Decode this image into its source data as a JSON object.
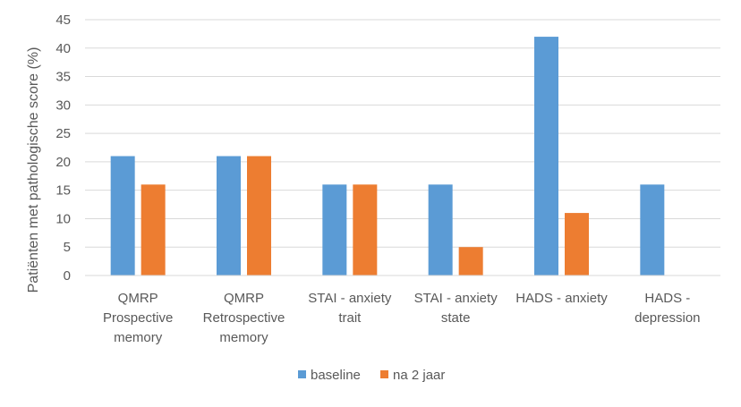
{
  "chart_data": {
    "type": "bar",
    "title": "",
    "xlabel": "",
    "ylabel": "Patiënten met pathologische score (%)",
    "ylim": [
      0,
      45
    ],
    "yticks": [
      0,
      5,
      10,
      15,
      20,
      25,
      30,
      35,
      40,
      45
    ],
    "grid": true,
    "legend_position": "bottom",
    "categories": [
      [
        "QMRP",
        "Prospective",
        "memory"
      ],
      [
        "QMRP",
        "Retrospective",
        "memory"
      ],
      [
        "STAI - anxiety",
        "trait"
      ],
      [
        "STAI - anxiety",
        "state"
      ],
      [
        "HADS - anxiety"
      ],
      [
        "HADS -",
        "depression"
      ]
    ],
    "series": [
      {
        "name": "baseline",
        "color": "#5B9BD5",
        "values": [
          21,
          21,
          16,
          16,
          42,
          16
        ]
      },
      {
        "name": "na 2 jaar",
        "color": "#ED7D31",
        "values": [
          16,
          21,
          16,
          5,
          11,
          0
        ]
      }
    ]
  }
}
